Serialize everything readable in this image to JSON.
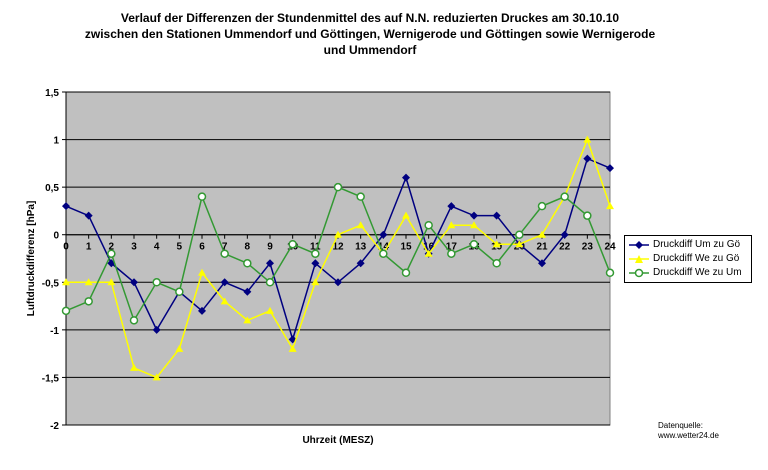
{
  "chart_data": {
    "type": "line",
    "title_lines": [
      "Verlauf der Differenzen der Stundenmittel des auf N.N. reduzierten Druckes am 30.10.10",
      "zwischen den Stationen Ummendorf und Göttingen, Wernigerode und Göttingen sowie Wernigerode",
      "und Ummendorf"
    ],
    "xlabel": "Uhrzeit (MESZ)",
    "ylabel": "Luftdruckdifferenz [hPa]",
    "x": [
      0,
      1,
      2,
      3,
      4,
      5,
      6,
      7,
      8,
      9,
      10,
      11,
      12,
      13,
      14,
      15,
      16,
      17,
      18,
      19,
      20,
      21,
      22,
      23,
      24
    ],
    "ylim": [
      -2,
      1.5
    ],
    "yticks": [
      -2,
      -1.5,
      -1,
      -0.5,
      0,
      0.5,
      1,
      1.5
    ],
    "ytick_labels": [
      "-2",
      "-1,5",
      "-1",
      "-0,5",
      "0",
      "0,5",
      "1",
      "1,5"
    ],
    "grid": true,
    "legend_position": "right",
    "plot_background": "#c0c0c0",
    "series": [
      {
        "name": "Druckdiff Um zu Gö",
        "color": "#000080",
        "marker": "diamond",
        "values": [
          0.3,
          0.2,
          -0.3,
          -0.5,
          -1.0,
          -0.6,
          -0.8,
          -0.5,
          -0.6,
          -0.3,
          -1.1,
          -0.3,
          -0.5,
          -0.3,
          0.0,
          0.6,
          -0.2,
          0.3,
          0.2,
          0.2,
          -0.1,
          -0.3,
          0.0,
          0.8,
          0.7
        ]
      },
      {
        "name": "Druckdiff We zu Gö",
        "color": "#ffff00",
        "marker": "triangle",
        "values": [
          -0.5,
          -0.5,
          -0.5,
          -1.4,
          -1.5,
          -1.2,
          -0.4,
          -0.7,
          -0.9,
          -0.8,
          -1.2,
          -0.5,
          0.0,
          0.1,
          -0.2,
          0.2,
          -0.2,
          0.1,
          0.1,
          -0.1,
          -0.1,
          0.0,
          0.4,
          1.0,
          0.3
        ]
      },
      {
        "name": "Druckdiff We zu Um",
        "color": "#339933",
        "marker": "circle",
        "values": [
          -0.8,
          -0.7,
          -0.2,
          -0.9,
          -0.5,
          -0.6,
          0.4,
          -0.2,
          -0.3,
          -0.5,
          -0.1,
          -0.2,
          0.5,
          0.4,
          -0.2,
          -0.4,
          0.1,
          -0.2,
          -0.1,
          -0.3,
          0.0,
          0.3,
          0.4,
          0.2,
          -0.4
        ]
      }
    ],
    "source_label": "Datenquelle:",
    "source_url": "www.wetter24.de"
  }
}
